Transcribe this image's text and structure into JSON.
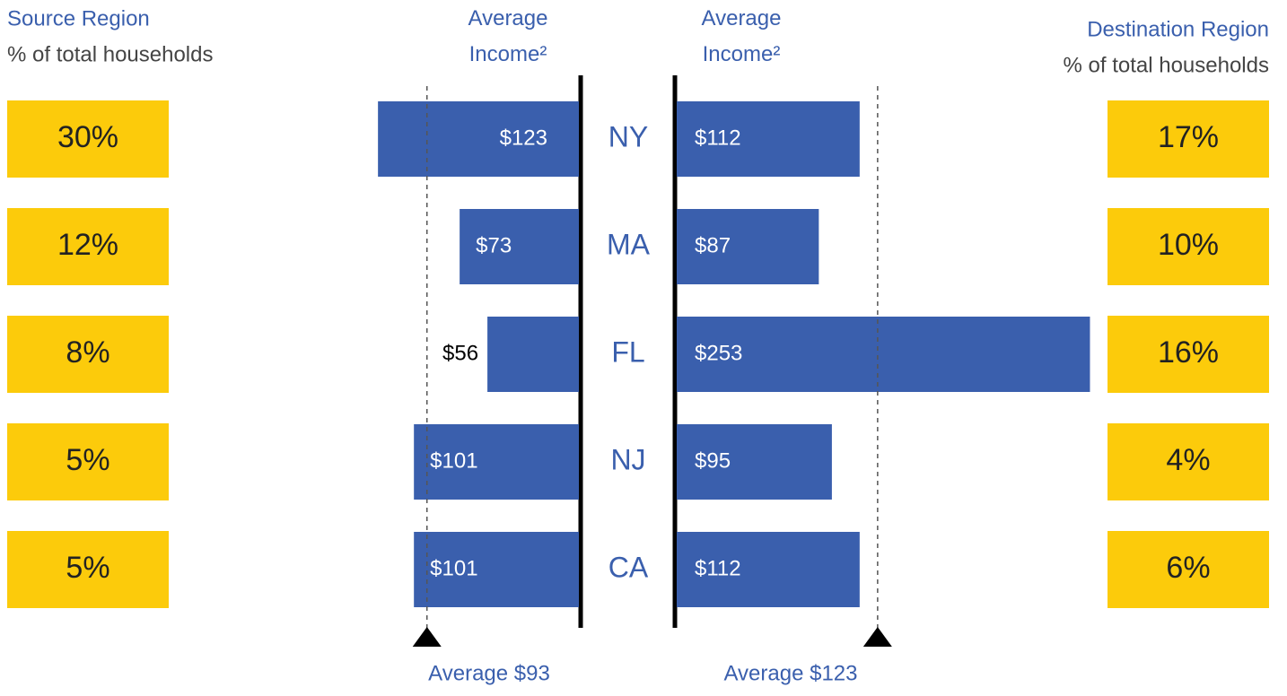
{
  "chart_data": {
    "type": "butterfly_bar",
    "left_title": "Source Region",
    "left_subtitle": "% of total households",
    "right_title": "Destination Region",
    "right_subtitle": "% of total households",
    "left_axis_title": "Average Income²",
    "right_axis_title": "Average Income²",
    "categories": [
      "NY",
      "MA",
      "FL",
      "NJ",
      "CA"
    ],
    "source_share": {
      "values": [
        30,
        12,
        8,
        5,
        5
      ],
      "value_labels": [
        "30%",
        "12%",
        "8%",
        "5%",
        "5%"
      ],
      "color": "#fccb0b"
    },
    "dest_share": {
      "values": [
        17,
        10,
        16,
        4,
        6
      ],
      "value_labels": [
        "17%",
        "10%",
        "16%",
        "4%",
        "6%"
      ],
      "color": "#fccb0b"
    },
    "source_income": {
      "values": [
        123,
        73,
        56,
        101,
        101
      ],
      "value_labels": [
        "$123",
        "$73",
        "$56",
        "$101",
        "$101"
      ],
      "color": "#3a5fad"
    },
    "dest_income": {
      "values": [
        112,
        87,
        253,
        95,
        112
      ],
      "value_labels": [
        "$112",
        "$87",
        "$253",
        "$95",
        "$112"
      ],
      "color": "#3a5fad"
    },
    "source_average": {
      "value": 93,
      "label": "Average $93"
    },
    "dest_average": {
      "value": 123,
      "label": "Average $123"
    }
  }
}
